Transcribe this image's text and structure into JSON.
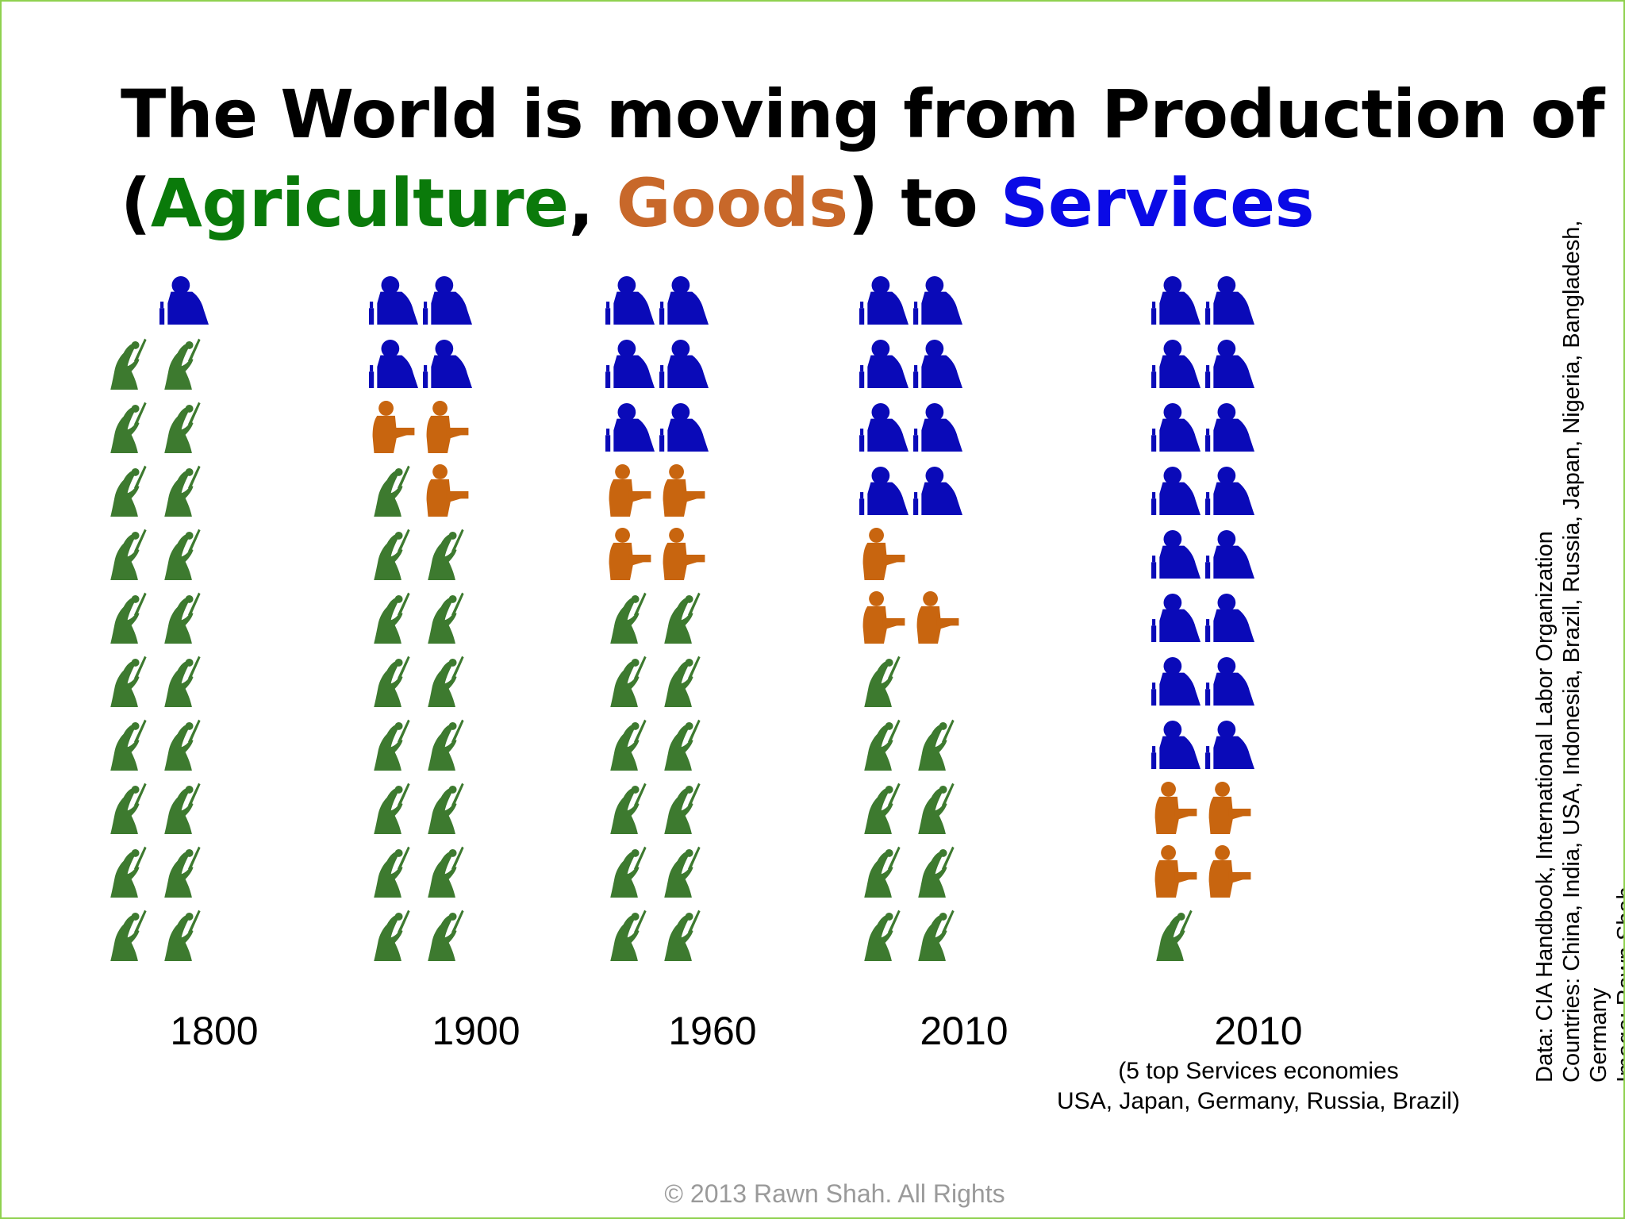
{
  "title": {
    "line1": "The World is moving from Production of",
    "open_paren": "(",
    "agriculture": "Agriculture",
    "comma": ", ",
    "goods": "Goods",
    "close_to": ") to ",
    "services": "Services"
  },
  "colors": {
    "agriculture": "#3d7a2f",
    "goods": "#c8650f",
    "services": "#0a0ab8",
    "title_agriculture": "#0a7a0a",
    "title_goods": "#c8682a",
    "title_services": "#0a0ae6",
    "border": "#8fd14f"
  },
  "icons": {
    "agriculture": "farmer-icon",
    "goods": "factory-worker-icon",
    "services": "office-worker-icon"
  },
  "chart_data": {
    "type": "pictogram",
    "unit": "each icon = 1/22 of the workforce (11 rows of 2)",
    "categories": [
      "1800",
      "1900",
      "1960",
      "2010",
      "2010"
    ],
    "series": [
      {
        "name": "Agriculture",
        "values": [
          20,
          15,
          12,
          9.5,
          1.5
        ]
      },
      {
        "name": "Goods",
        "values": [
          0.5,
          3,
          4,
          4,
          4.5
        ]
      },
      {
        "name": "Services",
        "values": [
          1.5,
          4,
          6,
          8.5,
          16
        ]
      }
    ]
  },
  "years": [
    "1800",
    "1900",
    "1960",
    "2010",
    "2010"
  ],
  "note": {
    "line1": "(5 top Services economies",
    "line2": "USA, Japan, Germany, Russia, Brazil)"
  },
  "source": {
    "line1": "Data:  CIA Handbook, International Labor Organization",
    "line2": "Countries: China, India, USA, Indonesia, Brazil, Russia, Japan, Nigeria, Bangladesh,",
    "line3": "Germany",
    "line4": "Image: Rawn Shah"
  },
  "copyright": "© 2013 Rawn Shah. All Rights"
}
